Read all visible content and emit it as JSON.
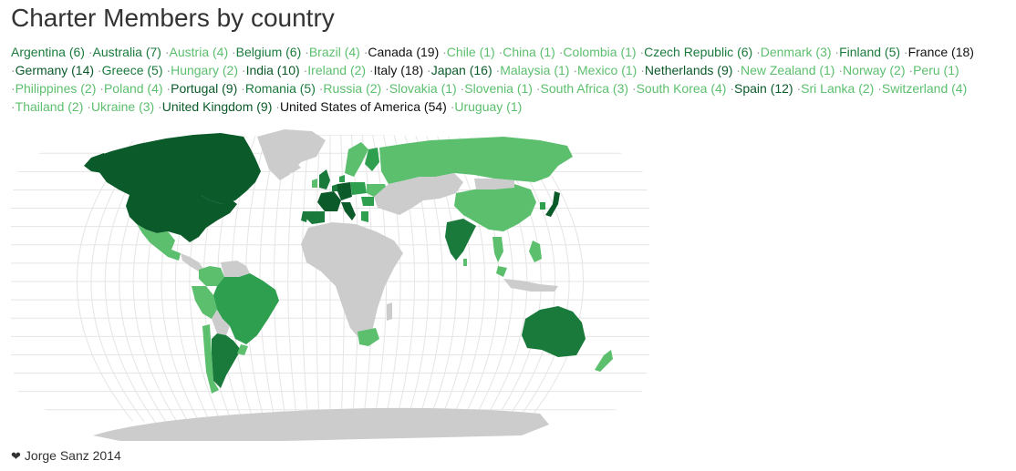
{
  "page": {
    "title": "Charter Members by country"
  },
  "scale_colors": {
    "low": "#5cbf6e",
    "mid": "#2e9e4f",
    "high": "#1a7a3c",
    "top": "#0b5a2a",
    "land": "#cccccc",
    "graticule": "#e5e5e5"
  },
  "countries": [
    {
      "name": "Argentina",
      "count": 6
    },
    {
      "name": "Australia",
      "count": 7
    },
    {
      "name": "Austria",
      "count": 4
    },
    {
      "name": "Belgium",
      "count": 6
    },
    {
      "name": "Brazil",
      "count": 4
    },
    {
      "name": "Canada",
      "count": 19
    },
    {
      "name": "Chile",
      "count": 1
    },
    {
      "name": "China",
      "count": 1
    },
    {
      "name": "Colombia",
      "count": 1
    },
    {
      "name": "Czech Republic",
      "count": 6
    },
    {
      "name": "Denmark",
      "count": 3
    },
    {
      "name": "Finland",
      "count": 5
    },
    {
      "name": "France",
      "count": 18
    },
    {
      "name": "Germany",
      "count": 14
    },
    {
      "name": "Greece",
      "count": 5
    },
    {
      "name": "Hungary",
      "count": 2
    },
    {
      "name": "India",
      "count": 10
    },
    {
      "name": "Ireland",
      "count": 2
    },
    {
      "name": "Italy",
      "count": 18
    },
    {
      "name": "Japan",
      "count": 16
    },
    {
      "name": "Malaysia",
      "count": 1
    },
    {
      "name": "Mexico",
      "count": 1
    },
    {
      "name": "Netherlands",
      "count": 9
    },
    {
      "name": "New Zealand",
      "count": 1
    },
    {
      "name": "Norway",
      "count": 2
    },
    {
      "name": "Peru",
      "count": 1
    },
    {
      "name": "Philippines",
      "count": 2
    },
    {
      "name": "Poland",
      "count": 4
    },
    {
      "name": "Portugal",
      "count": 9
    },
    {
      "name": "Romania",
      "count": 5
    },
    {
      "name": "Russia",
      "count": 2
    },
    {
      "name": "Slovakia",
      "count": 1
    },
    {
      "name": "Slovenia",
      "count": 1
    },
    {
      "name": "South Africa",
      "count": 3
    },
    {
      "name": "South Korea",
      "count": 4
    },
    {
      "name": "Spain",
      "count": 12
    },
    {
      "name": "Sri Lanka",
      "count": 2
    },
    {
      "name": "Switzerland",
      "count": 4
    },
    {
      "name": "Thailand",
      "count": 2
    },
    {
      "name": "Ukraine",
      "count": 3
    },
    {
      "name": "United Kingdom",
      "count": 9
    },
    {
      "name": "United States of America",
      "count": 54
    },
    {
      "name": "Uruguay",
      "count": 1
    }
  ],
  "footer": {
    "icon": "heart-icon",
    "text": "Jorge Sanz 2014"
  }
}
